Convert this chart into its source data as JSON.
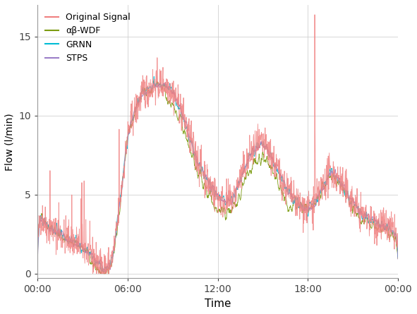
{
  "xlabel": "Time",
  "ylabel": "Flow (l/min)",
  "xlim": [
    0,
    1440
  ],
  "ylim": [
    -0.3,
    17
  ],
  "yticks": [
    0,
    5,
    10,
    15
  ],
  "xticks": [
    0,
    360,
    720,
    1080,
    1440
  ],
  "xticklabels": [
    "00:00",
    "06:00",
    "12:00",
    "18:00",
    "00:00"
  ],
  "colors": {
    "original": "#F08080",
    "wdf": "#7B9B10",
    "grnn": "#00BCD4",
    "stps": "#9B7EC8"
  },
  "legend_labels": [
    "Original Signal",
    "αβ-WDF",
    "GRNN",
    "STPS"
  ],
  "background_color": "#FFFFFF",
  "grid_color": "#CCCCCC",
  "linewidth": 0.65,
  "seed": 42,
  "n_points": 1440
}
